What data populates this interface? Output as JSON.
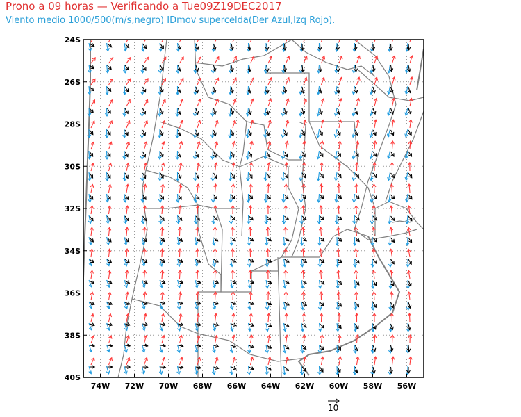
{
  "title": "Prono a 09 horas — Verificando a Tue09Z19DEC2017",
  "subtitle": "Viento medio 1000/500(m/s,negro) IDmov supercelda(Der Azul,Izq Rojo).",
  "map": {
    "lon_range": [
      -75,
      -55
    ],
    "lat_range": [
      -40,
      -24
    ],
    "lat_labels": [
      "24S",
      "26S",
      "28S",
      "30S",
      "32S",
      "34S",
      "36S",
      "38S",
      "40S"
    ],
    "lon_labels": [
      "74W",
      "72W",
      "70W",
      "68W",
      "66W",
      "64W",
      "62W",
      "60W",
      "58W",
      "56W"
    ],
    "grid": "dotted",
    "vector_scale_label": "10"
  },
  "colors": {
    "mean_wind": "#000000",
    "right_mover": "#1e9be0",
    "left_mover": "#ff3b3b",
    "borders": "#808080",
    "title": "#e03030",
    "subtitle": "#2a9fd8"
  }
}
